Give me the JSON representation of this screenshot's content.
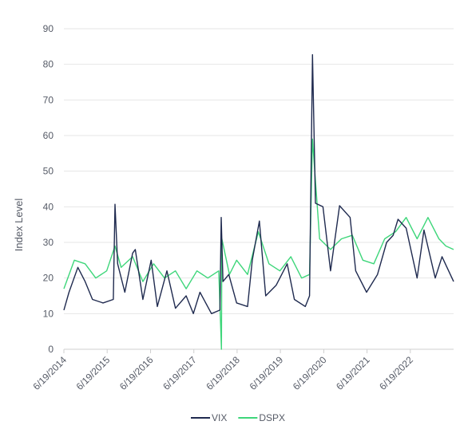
{
  "chart_data": {
    "type": "line",
    "ylabel": "Index Level",
    "ylim": [
      0,
      90
    ],
    "yticks": [
      0,
      10,
      20,
      30,
      40,
      50,
      60,
      70,
      80,
      90
    ],
    "xlim": [
      "2014-06-19",
      "2023-06-19"
    ],
    "xticks": [
      "6/19/2014",
      "6/19/2015",
      "6/19/2016",
      "6/19/2017",
      "6/19/2018",
      "6/19/2019",
      "6/19/2020",
      "6/19/2021",
      "6/19/2022"
    ],
    "grid": true,
    "legend": "bottom-center",
    "series": [
      {
        "name": "VIX",
        "color": "#1f2a4f",
        "points": [
          [
            "2014-06-19",
            11
          ],
          [
            "2014-08-01",
            16
          ],
          [
            "2014-10-15",
            23
          ],
          [
            "2014-12-15",
            19
          ],
          [
            "2015-02-15",
            14
          ],
          [
            "2015-05-15",
            13
          ],
          [
            "2015-08-10",
            14
          ],
          [
            "2015-08-24",
            40.7
          ],
          [
            "2015-09-15",
            24
          ],
          [
            "2015-11-15",
            16
          ],
          [
            "2016-01-20",
            27
          ],
          [
            "2016-02-11",
            28
          ],
          [
            "2016-04-15",
            14
          ],
          [
            "2016-06-24",
            25
          ],
          [
            "2016-08-15",
            12
          ],
          [
            "2016-11-04",
            22
          ],
          [
            "2017-01-15",
            11.5
          ],
          [
            "2017-04-15",
            15
          ],
          [
            "2017-06-15",
            10
          ],
          [
            "2017-08-10",
            16
          ],
          [
            "2017-11-15",
            10
          ],
          [
            "2018-01-25",
            11
          ],
          [
            "2018-02-05",
            37
          ],
          [
            "2018-02-20",
            19
          ],
          [
            "2018-04-10",
            21
          ],
          [
            "2018-06-15",
            13
          ],
          [
            "2018-09-15",
            12
          ],
          [
            "2018-10-25",
            25
          ],
          [
            "2018-12-24",
            36
          ],
          [
            "2019-02-15",
            15
          ],
          [
            "2019-05-15",
            18
          ],
          [
            "2019-08-15",
            24
          ],
          [
            "2019-10-15",
            14
          ],
          [
            "2020-01-15",
            12
          ],
          [
            "2020-02-20",
            15
          ],
          [
            "2020-03-16",
            82.7
          ],
          [
            "2020-04-10",
            41
          ],
          [
            "2020-06-12",
            40
          ],
          [
            "2020-08-15",
            22
          ],
          [
            "2020-10-30",
            40.3
          ],
          [
            "2021-01-27",
            37
          ],
          [
            "2021-03-15",
            22
          ],
          [
            "2021-06-15",
            16
          ],
          [
            "2021-09-15",
            21
          ],
          [
            "2021-12-01",
            30
          ],
          [
            "2022-01-25",
            32
          ],
          [
            "2022-03-07",
            36.5
          ],
          [
            "2022-05-15",
            34
          ],
          [
            "2022-08-15",
            20
          ],
          [
            "2022-10-12",
            33.5
          ],
          [
            "2023-01-15",
            20
          ],
          [
            "2023-03-13",
            26
          ],
          [
            "2023-06-19",
            19
          ]
        ]
      },
      {
        "name": "DSPX",
        "color": "#3ed67a",
        "points": [
          [
            "2014-06-19",
            17
          ],
          [
            "2014-09-15",
            25
          ],
          [
            "2014-12-15",
            24
          ],
          [
            "2015-03-15",
            20
          ],
          [
            "2015-06-15",
            22
          ],
          [
            "2015-08-24",
            29
          ],
          [
            "2015-10-15",
            23
          ],
          [
            "2016-01-20",
            26
          ],
          [
            "2016-04-15",
            19
          ],
          [
            "2016-07-15",
            24
          ],
          [
            "2016-10-15",
            20
          ],
          [
            "2017-01-15",
            22
          ],
          [
            "2017-04-15",
            17
          ],
          [
            "2017-07-15",
            22
          ],
          [
            "2017-10-15",
            20
          ],
          [
            "2018-01-15",
            22
          ],
          [
            "2018-02-07",
            0
          ],
          [
            "2018-02-10",
            31
          ],
          [
            "2018-04-15",
            21
          ],
          [
            "2018-06-15",
            25
          ],
          [
            "2018-09-15",
            21
          ],
          [
            "2018-12-15",
            33
          ],
          [
            "2019-03-15",
            24
          ],
          [
            "2019-06-15",
            22
          ],
          [
            "2019-09-15",
            26
          ],
          [
            "2019-12-15",
            20
          ],
          [
            "2020-02-20",
            21
          ],
          [
            "2020-03-16",
            59
          ],
          [
            "2020-05-15",
            31
          ],
          [
            "2020-08-15",
            28
          ],
          [
            "2020-11-15",
            31
          ],
          [
            "2021-02-15",
            32
          ],
          [
            "2021-05-15",
            25
          ],
          [
            "2021-08-15",
            24
          ],
          [
            "2021-11-15",
            31
          ],
          [
            "2022-02-15",
            33
          ],
          [
            "2022-05-15",
            37
          ],
          [
            "2022-08-15",
            31
          ],
          [
            "2022-11-15",
            37
          ],
          [
            "2023-02-15",
            31
          ],
          [
            "2023-04-15",
            29
          ],
          [
            "2023-06-19",
            28
          ]
        ]
      }
    ]
  }
}
